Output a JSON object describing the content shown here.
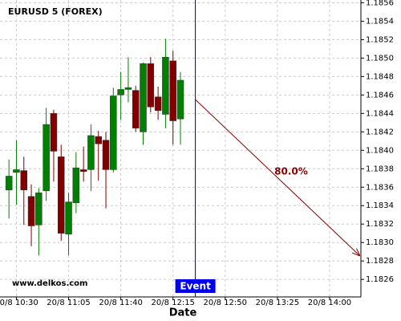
{
  "chart_data": {
    "type": "candlestick",
    "title": "EURUSD 5 (FOREX)",
    "watermark": "www.delkos.com",
    "xlabel": "Date",
    "x": [
      625,
      630,
      635,
      640,
      645,
      650,
      655,
      660,
      665,
      670,
      675,
      680,
      685,
      690,
      695,
      700,
      705,
      710,
      715,
      720,
      725,
      730,
      735,
      740
    ],
    "open": [
      1.18357,
      1.18376,
      1.18378,
      1.1835,
      1.18319,
      1.18356,
      1.1844,
      1.18393,
      1.18309,
      1.18343,
      1.18379,
      1.18379,
      1.18415,
      1.18411,
      1.18379,
      1.1846,
      1.18466,
      1.18465,
      1.1842,
      1.18494,
      1.18458,
      1.18439,
      1.18497,
      1.18434
    ],
    "close": [
      1.18372,
      1.18379,
      1.18357,
      1.18318,
      1.18354,
      1.18428,
      1.18399,
      1.1831,
      1.18344,
      1.18381,
      1.18377,
      1.18416,
      1.18407,
      1.18379,
      1.18459,
      1.18466,
      1.18468,
      1.18424,
      1.18494,
      1.18447,
      1.18443,
      1.18501,
      1.18432,
      1.18476
    ],
    "high": [
      1.1839,
      1.18411,
      1.18393,
      1.18363,
      1.18359,
      1.18446,
      1.18444,
      1.18406,
      1.18354,
      1.18398,
      1.18404,
      1.18428,
      1.18421,
      1.1842,
      1.18468,
      1.18485,
      1.18501,
      1.1847,
      1.18495,
      1.18501,
      1.18469,
      1.18521,
      1.18508,
      1.18485
    ],
    "low": [
      1.18326,
      1.18341,
      1.18319,
      1.18296,
      1.18286,
      1.18345,
      1.18366,
      1.18302,
      1.18286,
      1.18332,
      1.18366,
      1.18356,
      1.18367,
      1.18337,
      1.18376,
      1.18433,
      1.18452,
      1.1842,
      1.18406,
      1.18441,
      1.18433,
      1.18424,
      1.18406,
      1.18406
    ],
    "up_color": "#008000",
    "down_color": "#800000",
    "event": {
      "label": "Event",
      "x": 750
    },
    "forecast": {
      "x": [
        750,
        860
      ],
      "values": [
        1.18455,
        1.18286
      ],
      "label": "80.0%",
      "color": "#8b0000"
    },
    "xlim": [
      619,
      861
    ],
    "ylim": [
      1.18241,
      1.18563
    ],
    "xticks": [
      {
        "value": 630,
        "label": "20/8 10:30"
      },
      {
        "value": 665,
        "label": "20/8 11:05"
      },
      {
        "value": 700,
        "label": "20/8 11:40"
      },
      {
        "value": 735,
        "label": "20/8 12:15"
      },
      {
        "value": 770,
        "label": "20/8 12:50"
      },
      {
        "value": 805,
        "label": "20/8 13:25"
      },
      {
        "value": 840,
        "label": "20/8 14:00"
      }
    ],
    "yticks": [
      1.1826,
      1.1828,
      {
        "value": 1.183,
        "label": "1.1830"
      },
      1.1832,
      1.1834,
      1.1836,
      1.1838,
      {
        "value": 1.184,
        "label": "1.1840"
      },
      1.1842,
      1.1844,
      1.1846,
      1.1848,
      {
        "value": 1.185,
        "label": "1.1850"
      },
      1.1852,
      1.1854,
      1.1856
    ],
    "grid": true
  }
}
